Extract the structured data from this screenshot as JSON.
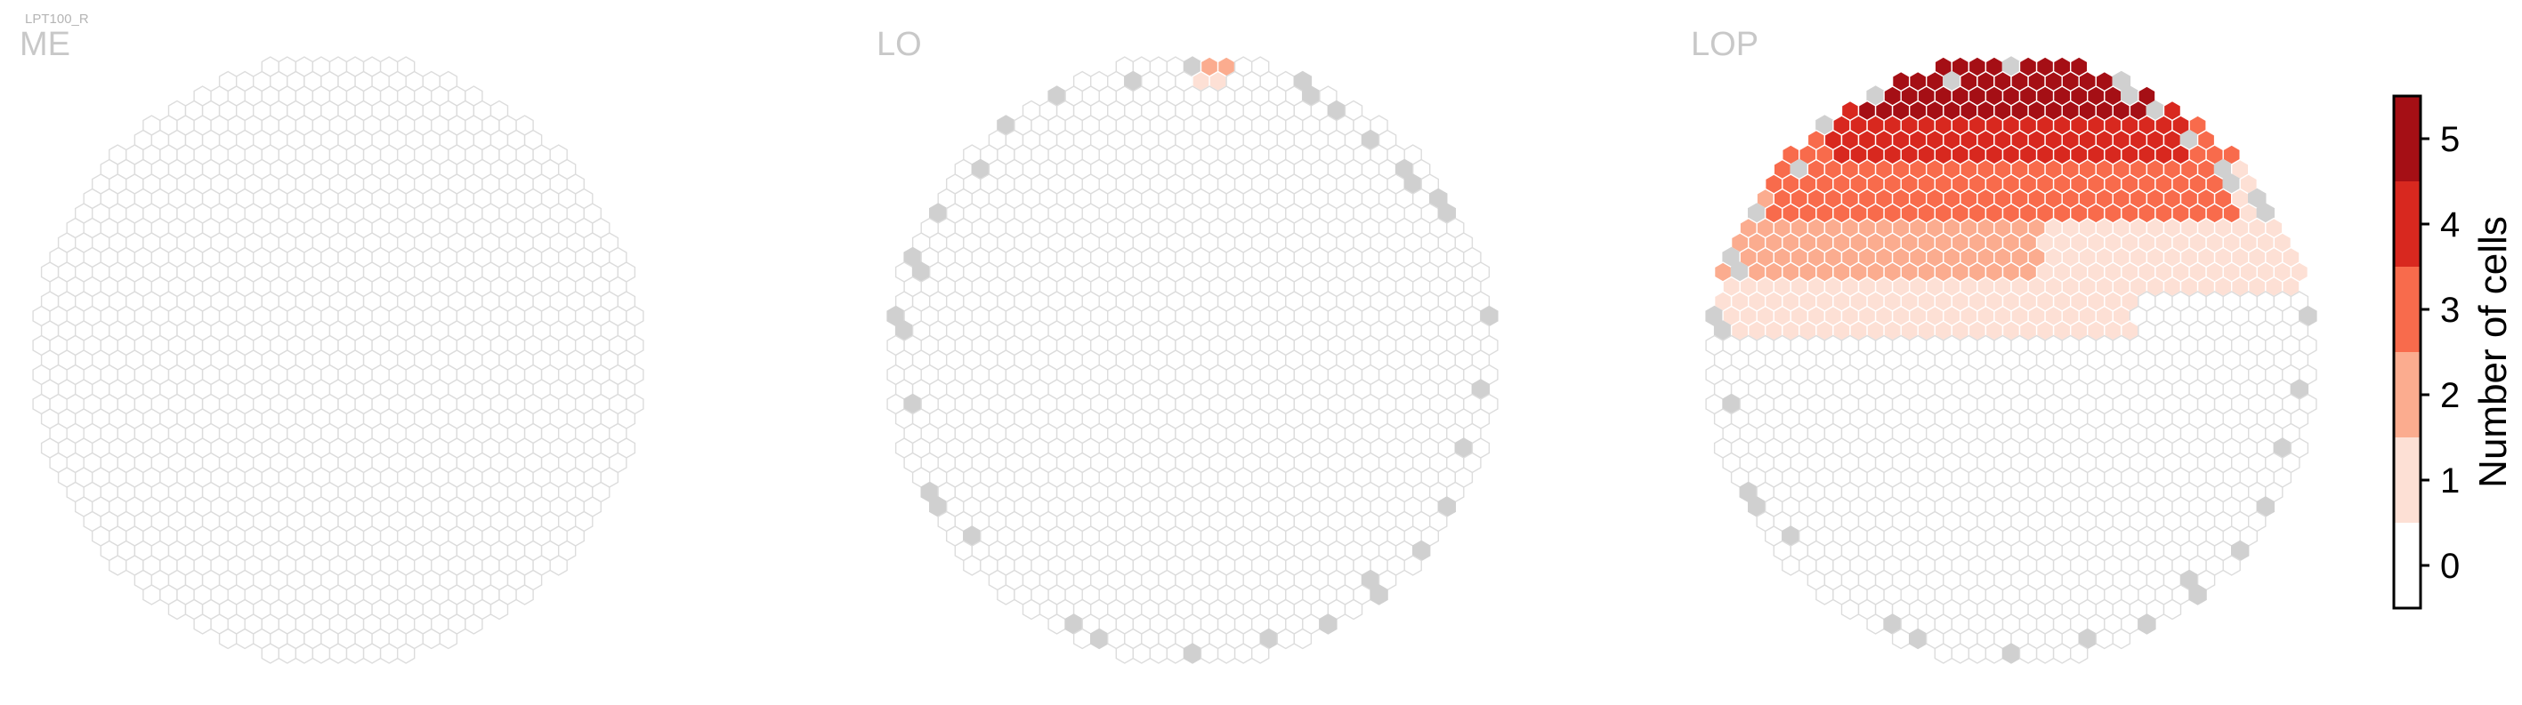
{
  "figure_label": "LPT100_R",
  "colors": {
    "empty_hex_fill": "#ffffff",
    "empty_hex_stroke": "#dcdcdc",
    "outside_column_fill": "#d0d0d0",
    "colorscale": [
      "#ffffff",
      "#fde0d5",
      "#fbac8f",
      "#f86b4c",
      "#d8281f",
      "#a50f15"
    ]
  },
  "chart_data": [
    {
      "type": "heatmap",
      "layout": "hexagonal columnar grid",
      "title": "ME",
      "description_value": "Number of cells per column",
      "cells": {
        "0": "all columns"
      },
      "columns_outside_region_shown_gray": false
    },
    {
      "type": "heatmap",
      "layout": "hexagonal columnar grid",
      "title": "LO",
      "cells": {
        "0": "nearly all columns",
        "1": "1 column near top",
        "2": "1 column near top"
      },
      "columns_outside_region_shown_gray": true
    },
    {
      "type": "heatmap",
      "layout": "hexagonal columnar grid",
      "title": "LOP",
      "cells": {
        "0": "lower half",
        "1": "middle band",
        "2": "upper-left band",
        "3": "upper band",
        "4": "top rim",
        "5": "top rim peak"
      },
      "columns_outside_region_shown_gray": true
    }
  ],
  "colorbar": {
    "label": "Number of cells",
    "ticks": [
      "0",
      "1",
      "2",
      "3",
      "4",
      "5"
    ],
    "range": [
      -0.5,
      5.5
    ]
  }
}
